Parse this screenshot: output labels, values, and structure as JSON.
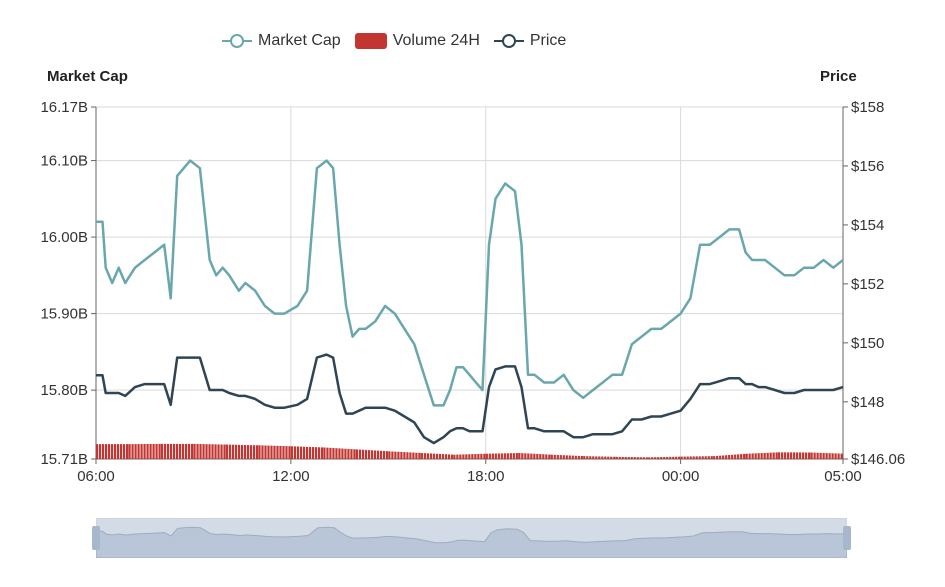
{
  "legend": {
    "market_cap": "Market Cap",
    "volume": "Volume 24H",
    "price": "Price"
  },
  "colors": {
    "market_cap": "#6aa7ad",
    "volume": "#c23531",
    "price": "#2f4554",
    "grid": "#d9d9d9",
    "axis": "#666666",
    "slider_fill": "#d3dbe6",
    "slider_handle": "#a7b7cc"
  },
  "chart_data": {
    "type": "line",
    "x_tick_labels": [
      "06:00",
      "12:00",
      "18:00",
      "00:00",
      "05:00"
    ],
    "x_tick_hours": [
      0,
      6,
      12,
      18,
      23
    ],
    "left_axis": {
      "name": "Market Cap",
      "tick_labels": [
        "16.17B",
        "16.10B",
        "16.00B",
        "15.90B",
        "15.80B",
        "15.71B"
      ],
      "tick_values": [
        16.17,
        16.1,
        16.0,
        15.9,
        15.8,
        15.71
      ],
      "ylim": [
        15.71,
        16.17
      ],
      "unit": "B"
    },
    "right_axis": {
      "name": "Price",
      "tick_labels": [
        "$158",
        "$156",
        "$154",
        "$152",
        "$150",
        "$148",
        "$146.06"
      ],
      "tick_values": [
        158,
        156,
        154,
        152,
        150,
        148,
        146.06
      ],
      "ylim": [
        146.06,
        158
      ]
    },
    "series": [
      {
        "name": "Market Cap",
        "axis": "left",
        "x_hours": [
          0,
          0.2,
          0.3,
          0.5,
          0.7,
          0.9,
          1.2,
          1.5,
          1.8,
          2.1,
          2.3,
          2.5,
          2.7,
          2.9,
          3.2,
          3.5,
          3.7,
          3.9,
          4.1,
          4.4,
          4.6,
          4.9,
          5.2,
          5.5,
          5.8,
          6.2,
          6.5,
          6.8,
          7.1,
          7.3,
          7.5,
          7.7,
          7.9,
          8.1,
          8.3,
          8.6,
          8.9,
          9.2,
          9.5,
          9.8,
          10.1,
          10.4,
          10.7,
          10.9,
          11.1,
          11.3,
          11.5,
          11.7,
          11.9,
          12.1,
          12.3,
          12.6,
          12.9,
          13.1,
          13.3,
          13.5,
          13.8,
          14.1,
          14.4,
          14.7,
          15.0,
          15.3,
          15.6,
          15.9,
          16.2,
          16.5,
          16.8,
          17.1,
          17.4,
          17.7,
          18.0,
          18.3,
          18.6,
          18.9,
          19.2,
          19.5,
          19.8,
          20.0,
          20.2,
          20.4,
          20.6,
          20.9,
          21.2,
          21.5,
          21.8,
          22.1,
          22.4,
          22.7,
          23.0
        ],
        "values": [
          16.02,
          16.02,
          15.96,
          15.94,
          15.96,
          15.94,
          15.96,
          15.97,
          15.98,
          15.99,
          15.92,
          16.08,
          16.09,
          16.1,
          16.09,
          15.97,
          15.95,
          15.96,
          15.95,
          15.93,
          15.94,
          15.93,
          15.91,
          15.9,
          15.9,
          15.91,
          15.93,
          16.09,
          16.1,
          16.09,
          15.99,
          15.91,
          15.87,
          15.88,
          15.88,
          15.89,
          15.91,
          15.9,
          15.88,
          15.86,
          15.82,
          15.78,
          15.78,
          15.8,
          15.83,
          15.83,
          15.82,
          15.81,
          15.8,
          15.99,
          16.05,
          16.07,
          16.06,
          15.99,
          15.82,
          15.82,
          15.81,
          15.81,
          15.82,
          15.8,
          15.79,
          15.8,
          15.81,
          15.82,
          15.82,
          15.86,
          15.87,
          15.88,
          15.88,
          15.89,
          15.9,
          15.92,
          15.99,
          15.99,
          16.0,
          16.01,
          16.01,
          15.98,
          15.97,
          15.97,
          15.97,
          15.96,
          15.95,
          15.95,
          15.96,
          15.96,
          15.97,
          15.96,
          15.97
        ]
      },
      {
        "name": "Price",
        "axis": "right",
        "x_hours": [
          0,
          0.2,
          0.3,
          0.5,
          0.7,
          0.9,
          1.2,
          1.5,
          1.8,
          2.1,
          2.3,
          2.5,
          2.7,
          2.9,
          3.2,
          3.5,
          3.7,
          3.9,
          4.1,
          4.4,
          4.6,
          4.9,
          5.2,
          5.5,
          5.8,
          6.2,
          6.5,
          6.8,
          7.1,
          7.3,
          7.5,
          7.7,
          7.9,
          8.1,
          8.3,
          8.6,
          8.9,
          9.2,
          9.5,
          9.8,
          10.1,
          10.4,
          10.7,
          10.9,
          11.1,
          11.3,
          11.5,
          11.7,
          11.9,
          12.1,
          12.3,
          12.6,
          12.9,
          13.1,
          13.3,
          13.5,
          13.8,
          14.1,
          14.4,
          14.7,
          15.0,
          15.3,
          15.6,
          15.9,
          16.2,
          16.5,
          16.8,
          17.1,
          17.4,
          17.7,
          18.0,
          18.3,
          18.6,
          18.9,
          19.2,
          19.5,
          19.8,
          20.0,
          20.2,
          20.4,
          20.6,
          20.9,
          21.2,
          21.5,
          21.8,
          22.1,
          22.4,
          22.7,
          23.0
        ],
        "values": [
          148.9,
          148.9,
          148.3,
          148.3,
          148.3,
          148.2,
          148.5,
          148.6,
          148.6,
          148.6,
          147.9,
          149.5,
          149.5,
          149.5,
          149.5,
          148.4,
          148.4,
          148.4,
          148.3,
          148.2,
          148.2,
          148.1,
          147.9,
          147.8,
          147.8,
          147.9,
          148.1,
          149.5,
          149.6,
          149.5,
          148.3,
          147.6,
          147.6,
          147.7,
          147.8,
          147.8,
          147.8,
          147.7,
          147.5,
          147.3,
          146.8,
          146.6,
          146.8,
          147.0,
          147.1,
          147.1,
          147.0,
          147.0,
          147.0,
          148.5,
          149.1,
          149.2,
          149.2,
          148.5,
          147.1,
          147.1,
          147.0,
          147.0,
          147.0,
          146.8,
          146.8,
          146.9,
          146.9,
          146.9,
          147.0,
          147.4,
          147.4,
          147.5,
          147.5,
          147.6,
          147.7,
          148.1,
          148.6,
          148.6,
          148.7,
          148.8,
          148.8,
          148.6,
          148.6,
          148.5,
          148.5,
          148.4,
          148.3,
          148.3,
          148.4,
          148.4,
          148.4,
          148.4,
          148.5
        ]
      },
      {
        "name": "Volume 24H",
        "type": "bar",
        "x_hours": [
          0,
          1,
          2,
          3,
          4,
          5,
          6,
          7,
          8,
          9,
          10,
          11,
          12,
          13,
          14,
          15,
          16,
          17,
          18,
          19,
          20,
          21,
          22,
          23
        ],
        "values_relative": [
          0.62,
          0.62,
          0.63,
          0.63,
          0.6,
          0.57,
          0.53,
          0.48,
          0.4,
          0.32,
          0.25,
          0.18,
          0.22,
          0.25,
          0.18,
          0.12,
          0.09,
          0.07,
          0.1,
          0.12,
          0.22,
          0.28,
          0.27,
          0.22
        ]
      }
    ],
    "grid": true,
    "legend_position": "top-center",
    "data_zoom_slider": true
  }
}
